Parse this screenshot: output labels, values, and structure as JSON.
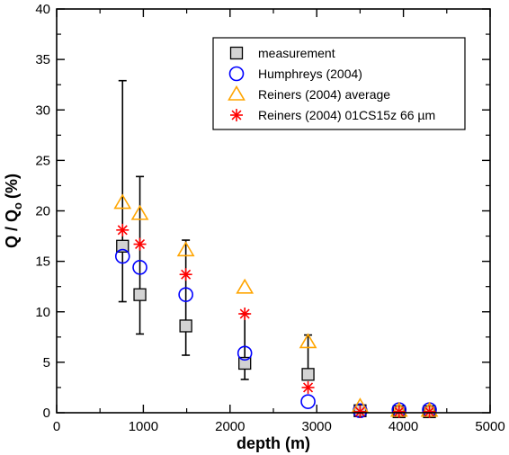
{
  "chart_data": {
    "type": "scatter",
    "title": "",
    "xlabel": "depth  (m)",
    "ylabel_main": "Q / Q",
    "ylabel_sub": "o",
    "ylabel_unit": "(%)",
    "xlim": [
      0,
      5000
    ],
    "ylim": [
      0,
      40
    ],
    "x_ticks": [
      0,
      1000,
      2000,
      3000,
      4000,
      5000
    ],
    "x_tick_labels": [
      "0",
      "1000",
      "2000",
      "3000",
      "4000",
      "5000"
    ],
    "y_ticks": [
      0,
      5,
      10,
      15,
      20,
      25,
      30,
      35,
      40
    ],
    "y_tick_labels": [
      "0",
      "5",
      "10",
      "15",
      "20",
      "25",
      "30",
      "35",
      "40"
    ],
    "grid": false,
    "legend_position": "top-right",
    "series": [
      {
        "name": "measurement",
        "marker": "square",
        "color": "#000000",
        "fill": "#d3d3d3",
        "x": [
          760,
          960,
          1490,
          2170,
          2900,
          3500,
          3950,
          4300
        ],
        "y": [
          16.5,
          11.7,
          8.6,
          4.9,
          3.8,
          0.2,
          0.1,
          0.1
        ],
        "err_low": [
          5.5,
          3.9,
          2.9,
          1.6,
          0.0,
          0,
          0,
          0
        ],
        "err_high": [
          16.4,
          11.7,
          8.5,
          4.9,
          3.9,
          0,
          0,
          0
        ]
      },
      {
        "name": "Humphreys (2004)",
        "marker": "circle",
        "color": "#0000ff",
        "x": [
          760,
          960,
          1490,
          2170,
          2900,
          3500,
          3950,
          4300
        ],
        "y": [
          15.5,
          14.4,
          11.7,
          5.9,
          1.1,
          0.2,
          0.3,
          0.3
        ]
      },
      {
        "name": "Reiners (2004) average",
        "marker": "triangle",
        "color": "#ffa500",
        "x": [
          760,
          960,
          1490,
          2170,
          2900,
          3500,
          3950,
          4300
        ],
        "y": [
          20.8,
          19.7,
          16.1,
          12.4,
          7.0,
          0.6,
          0.2,
          0.2
        ]
      },
      {
        "name": "Reiners (2004) 01CS15z 66 µm",
        "marker": "asterisk",
        "color": "#ff0000",
        "x": [
          760,
          960,
          1490,
          2170,
          2900,
          3500,
          3950,
          4300
        ],
        "y": [
          18.1,
          16.7,
          13.7,
          9.8,
          2.5,
          0.1,
          0.1,
          0.1
        ]
      }
    ]
  }
}
